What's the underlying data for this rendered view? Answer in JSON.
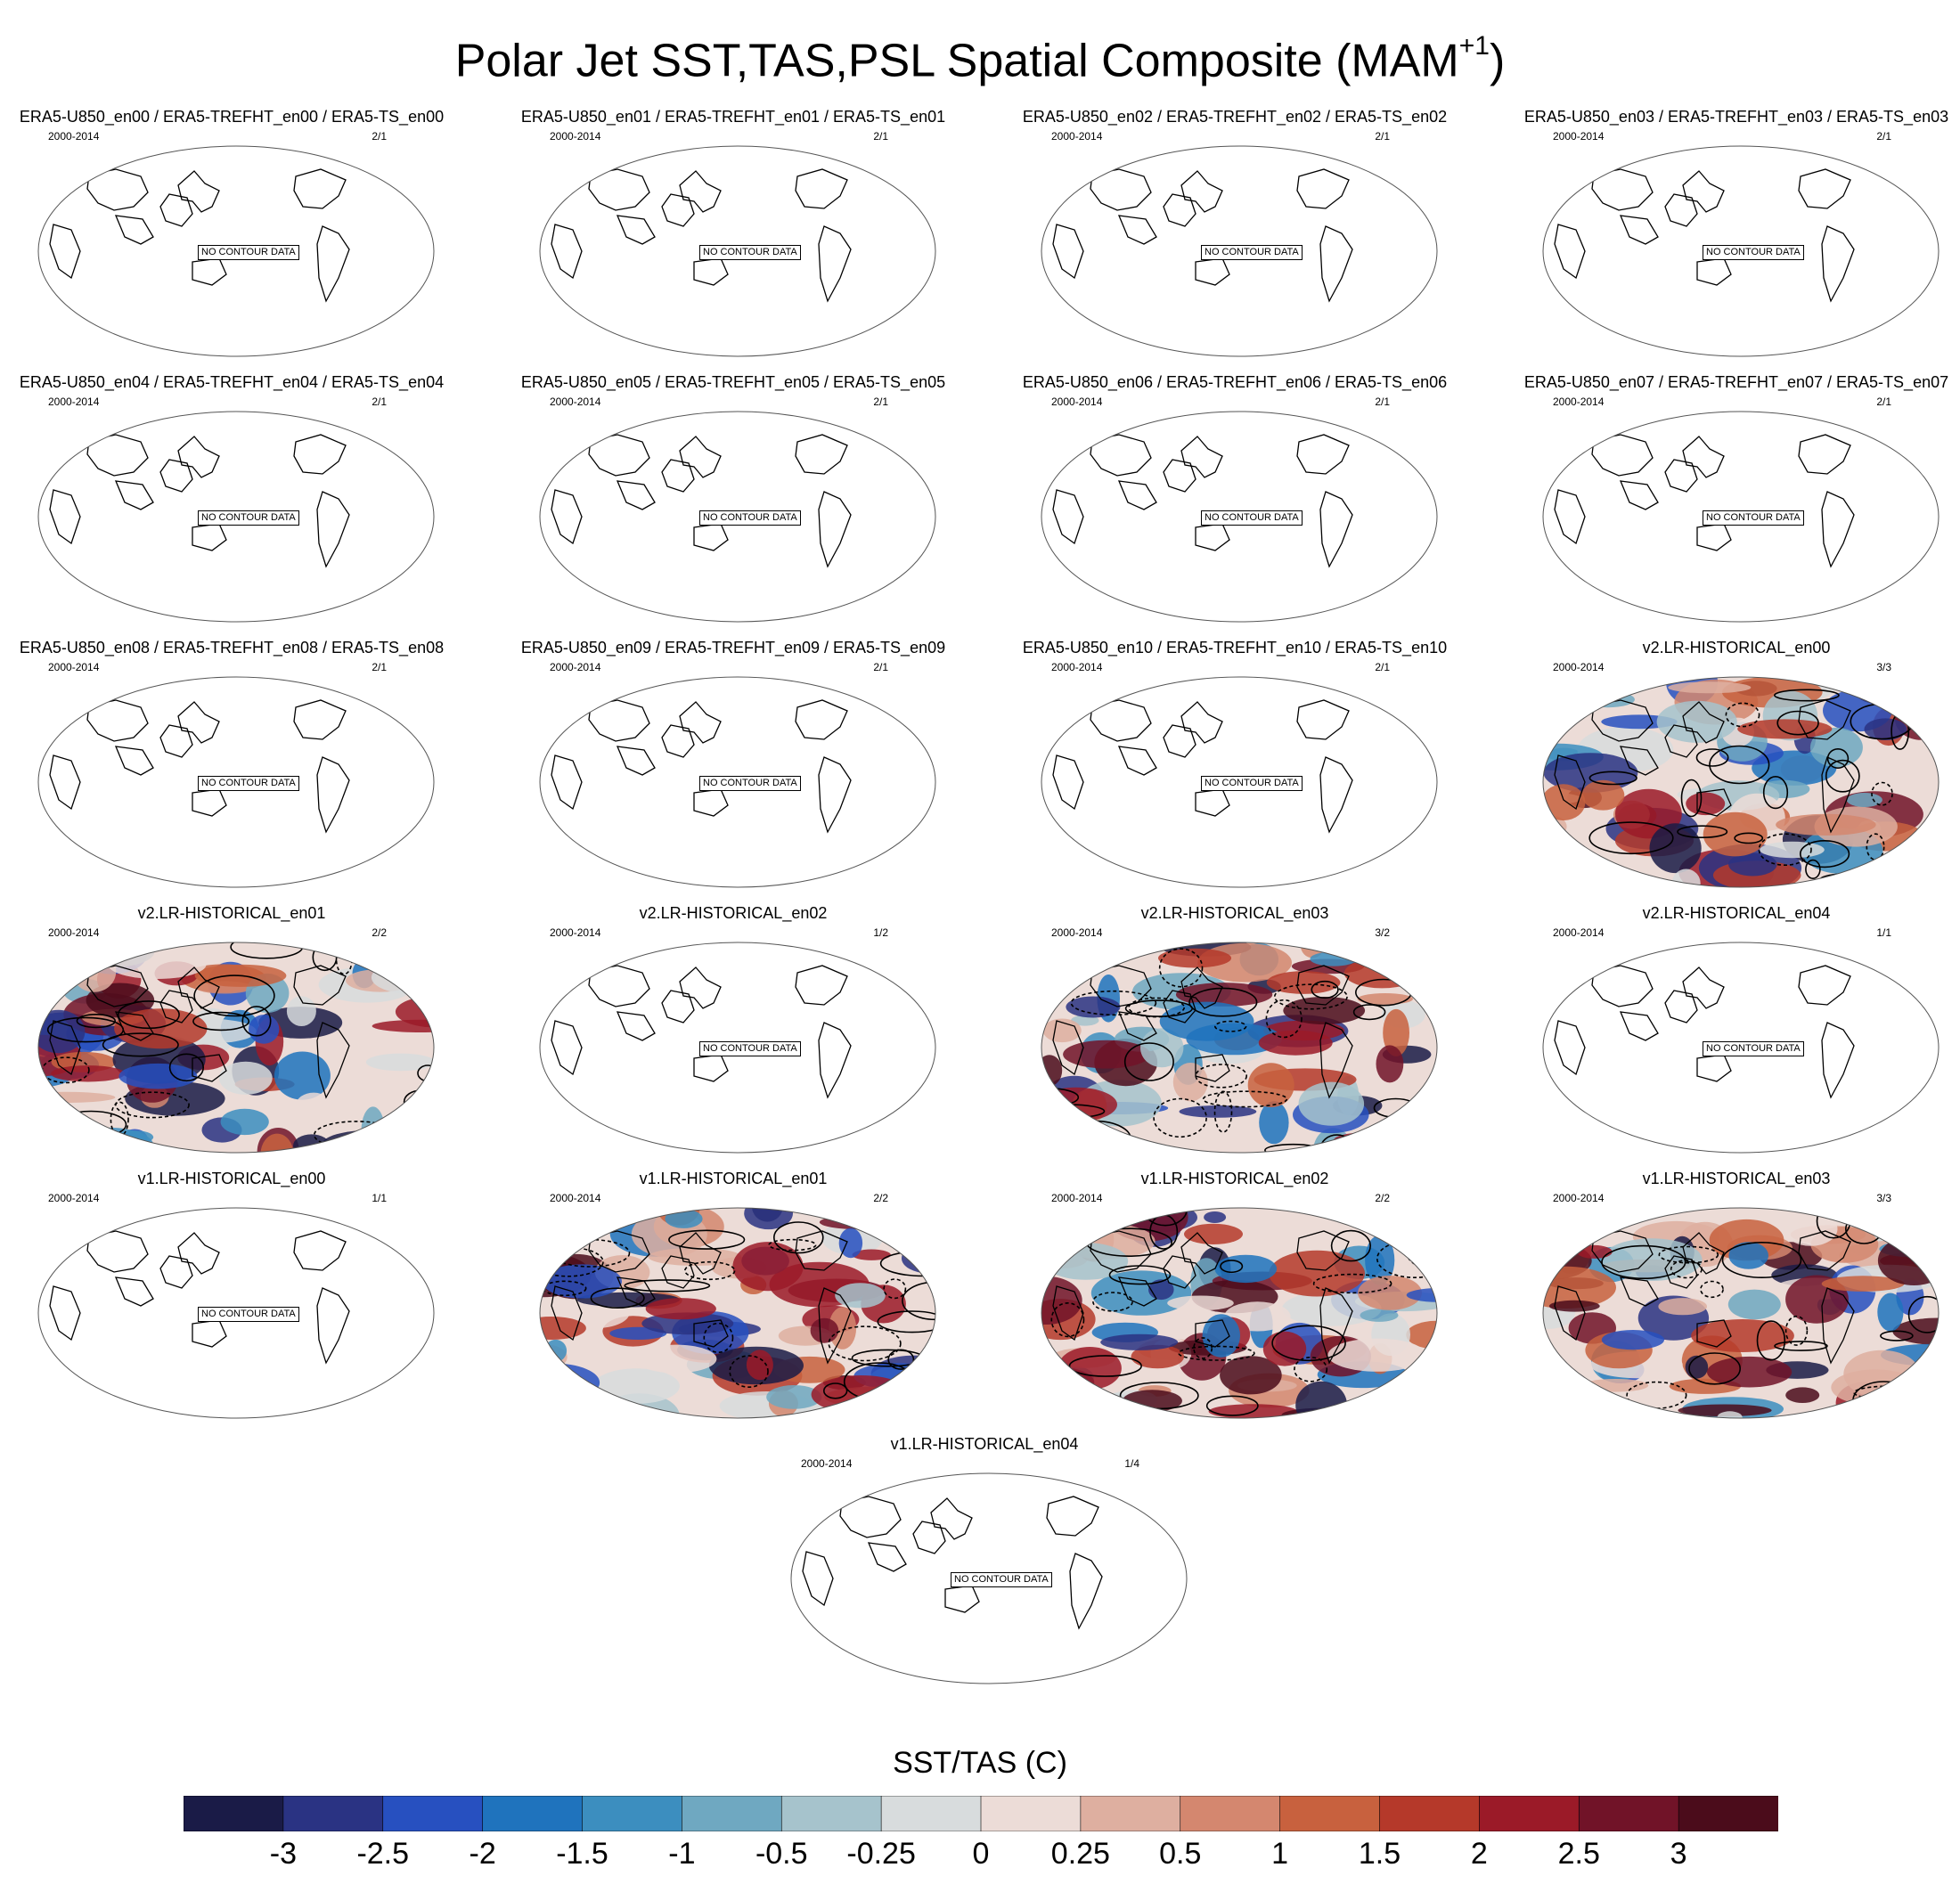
{
  "figure": {
    "title": "Polar Jet SST,TAS,PSL Spatial Composite (MAM",
    "title_superscript": "+1",
    "title_close": ")"
  },
  "no_contour_text": "NO CONTOUR DATA",
  "panels": [
    {
      "title": "ERA5-U850_en00 / ERA5-TREFHT_en00 / ERA5-TS_en00",
      "years": "2000-2014",
      "ratio": "2/1",
      "filled": false
    },
    {
      "title": "ERA5-U850_en01 / ERA5-TREFHT_en01 / ERA5-TS_en01",
      "years": "2000-2014",
      "ratio": "2/1",
      "filled": false
    },
    {
      "title": "ERA5-U850_en02 / ERA5-TREFHT_en02 / ERA5-TS_en02",
      "years": "2000-2014",
      "ratio": "2/1",
      "filled": false
    },
    {
      "title": "ERA5-U850_en03 / ERA5-TREFHT_en03 / ERA5-TS_en03",
      "years": "2000-2014",
      "ratio": "2/1",
      "filled": false
    },
    {
      "title": "ERA5-U850_en04 / ERA5-TREFHT_en04 / ERA5-TS_en04",
      "years": "2000-2014",
      "ratio": "2/1",
      "filled": false
    },
    {
      "title": "ERA5-U850_en05 / ERA5-TREFHT_en05 / ERA5-TS_en05",
      "years": "2000-2014",
      "ratio": "2/1",
      "filled": false
    },
    {
      "title": "ERA5-U850_en06 / ERA5-TREFHT_en06 / ERA5-TS_en06",
      "years": "2000-2014",
      "ratio": "2/1",
      "filled": false
    },
    {
      "title": "ERA5-U850_en07 / ERA5-TREFHT_en07 / ERA5-TS_en07",
      "years": "2000-2014",
      "ratio": "2/1",
      "filled": false
    },
    {
      "title": "ERA5-U850_en08 / ERA5-TREFHT_en08 / ERA5-TS_en08",
      "years": "2000-2014",
      "ratio": "2/1",
      "filled": false
    },
    {
      "title": "ERA5-U850_en09 / ERA5-TREFHT_en09 / ERA5-TS_en09",
      "years": "2000-2014",
      "ratio": "2/1",
      "filled": false
    },
    {
      "title": "ERA5-U850_en10 / ERA5-TREFHT_en10 / ERA5-TS_en10",
      "years": "2000-2014",
      "ratio": "2/1",
      "filled": false
    },
    {
      "title": "v2.LR-HISTORICAL_en00",
      "years": "2000-2014",
      "ratio": "3/3",
      "filled": true
    },
    {
      "title": "v2.LR-HISTORICAL_en01",
      "years": "2000-2014",
      "ratio": "2/2",
      "filled": true
    },
    {
      "title": "v2.LR-HISTORICAL_en02",
      "years": "2000-2014",
      "ratio": "1/2",
      "filled": false
    },
    {
      "title": "v2.LR-HISTORICAL_en03",
      "years": "2000-2014",
      "ratio": "3/2",
      "filled": true
    },
    {
      "title": "v2.LR-HISTORICAL_en04",
      "years": "2000-2014",
      "ratio": "1/1",
      "filled": false
    },
    {
      "title": "v1.LR-HISTORICAL_en00",
      "years": "2000-2014",
      "ratio": "1/1",
      "filled": false
    },
    {
      "title": "v1.LR-HISTORICAL_en01",
      "years": "2000-2014",
      "ratio": "2/2",
      "filled": true
    },
    {
      "title": "v1.LR-HISTORICAL_en02",
      "years": "2000-2014",
      "ratio": "2/2",
      "filled": true
    },
    {
      "title": "v1.LR-HISTORICAL_en03",
      "years": "2000-2014",
      "ratio": "3/3",
      "filled": true
    },
    {
      "title": "v1.LR-HISTORICAL_en04",
      "years": "2000-2014",
      "ratio": "1/4",
      "filled": false
    }
  ],
  "chart_data": {
    "type": "heatmap",
    "colorbar_title": "SST/TAS (C)",
    "colorbar_labels": [
      "-3",
      "-2.5",
      "-2",
      "-1.5",
      "-1",
      "-0.5",
      "-0.25",
      "0",
      "0.25",
      "0.5",
      "1",
      "1.5",
      "2",
      "2.5",
      "3"
    ],
    "colorbar_colors": [
      "#1a1b47",
      "#2a3383",
      "#2750c0",
      "#1f73bd",
      "#3c8ebf",
      "#6fa8c1",
      "#a6c3cc",
      "#d8dcdd",
      "#ecdcd7",
      "#deafa0",
      "#d4876f",
      "#c8613e",
      "#b5392a",
      "#9b1a28",
      "#711328",
      "#4b0c1b"
    ]
  },
  "colors": {
    "ocean_outline": "#000000",
    "background": "#ffffff"
  }
}
